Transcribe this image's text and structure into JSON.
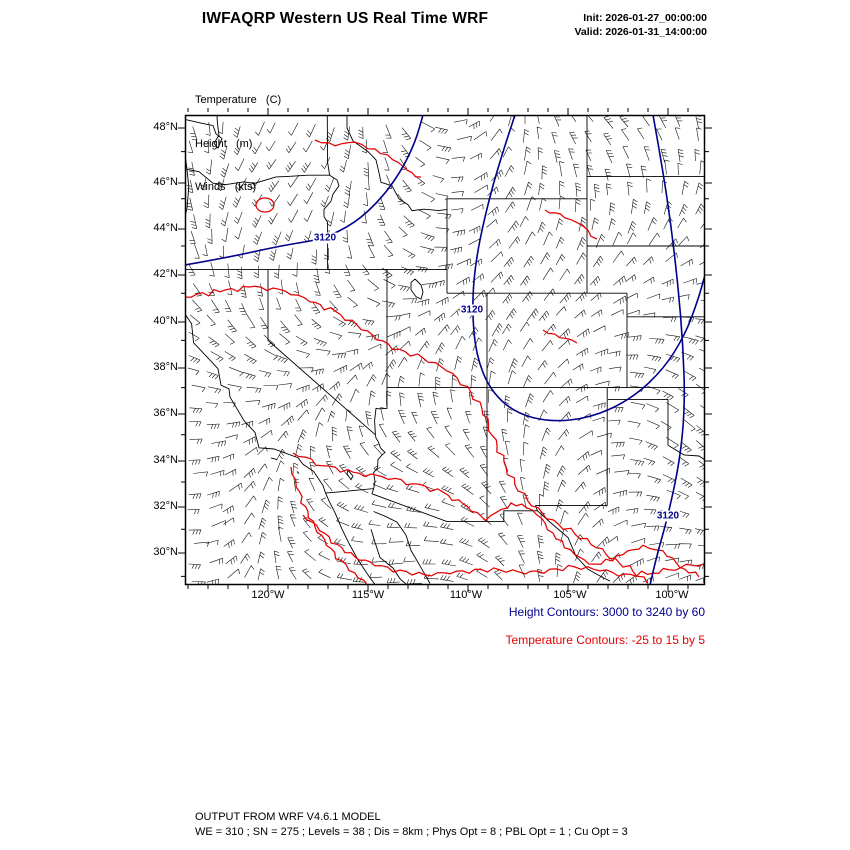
{
  "header": {
    "title": "IWFAQRP Western US Real Time WRF",
    "init": "Init: 2026-01-27_00:00:00",
    "valid": "Valid: 2026-01-31_14:00:00"
  },
  "legend": {
    "temperature": "Temperature   (C)",
    "height": "Height   (m)",
    "winds": "Winds   (kts)"
  },
  "map": {
    "y_ticks": [
      "48°N",
      "46°N",
      "44°N",
      "42°N",
      "40°N",
      "38°N",
      "36°N",
      "34°N",
      "32°N",
      "30°N"
    ],
    "x_ticks": [
      "120°W",
      "115°W",
      "110°W",
      "105°W",
      "100°W"
    ],
    "contour_labels": [
      {
        "text": "3120"
      },
      {
        "text": "3120"
      },
      {
        "text": "3120"
      }
    ],
    "colors": {
      "height_contour": "#00008b",
      "temperature_contour": "#e60000",
      "wind_barb": "#000000",
      "boundary": "#000000",
      "frame": "#000000"
    }
  },
  "captions": {
    "height": "Height Contours: 3000 to 3240 by 60",
    "temperature": "Temperature Contours: -25 to 15 by 5"
  },
  "footer": {
    "line1": "OUTPUT FROM WRF V4.6.1 MODEL",
    "line2": "WE = 310 ; SN = 275 ; Levels = 38 ; Dis = 8km ; Phys Opt = 8 ; PBL Opt = 1 ; Cu Opt = 3"
  }
}
